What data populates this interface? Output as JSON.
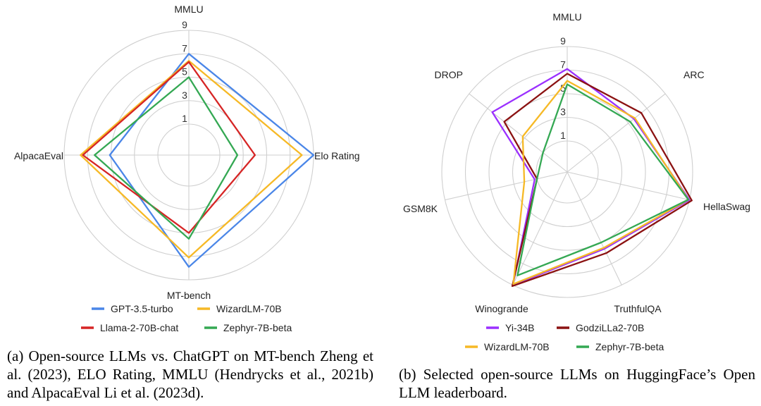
{
  "chart_data": [
    {
      "type": "radar",
      "axes": [
        "MMLU",
        "Elo Rating",
        "MT-bench",
        "AlpacaEval"
      ],
      "rlim": [
        1,
        9
      ],
      "ticks": [
        1,
        3,
        5,
        7,
        9
      ],
      "legend_position": "bottom",
      "series": [
        {
          "name": "GPT-3.5-turbo",
          "color": "#4a86e8",
          "values": [
            7.0,
            9.0,
            7.9,
            5.1
          ]
        },
        {
          "name": "WizardLM-70B",
          "color": "#f6b926",
          "values": [
            6.4,
            8.0,
            7.1,
            7.6
          ]
        },
        {
          "name": "Llama-2-70B-chat",
          "color": "#d62525",
          "values": [
            6.3,
            4.0,
            5.0,
            7.4
          ]
        },
        {
          "name": "Zephyr-7B-beta",
          "color": "#34a853",
          "values": [
            5.0,
            2.5,
            5.5,
            6.4
          ]
        }
      ]
    },
    {
      "type": "radar",
      "axes": [
        "MMLU",
        "ARC",
        "HellaSwag",
        "TruthfulQA",
        "Winogrande",
        "GSM8K",
        "DROP"
      ],
      "rlim": [
        1,
        9
      ],
      "ticks": [
        1,
        3,
        5,
        7,
        9
      ],
      "legend_position": "bottom",
      "series": [
        {
          "name": "Yi-34B",
          "color": "#9b30ff",
          "values": [
            7.1,
            5.6,
            9.0,
            5.6,
            9.0,
            1.2,
            6.5
          ]
        },
        {
          "name": "GodziLLa2-70B",
          "color": "#8b1212",
          "values": [
            6.7,
            6.4,
            9.2,
            6.0,
            9.1,
            1.0,
            5.2
          ]
        },
        {
          "name": "WizardLM-70B",
          "color": "#f6b926",
          "values": [
            6.1,
            5.7,
            8.9,
            5.5,
            8.9,
            2.1,
            3.2
          ]
        },
        {
          "name": "Zephyr-7B-beta",
          "color": "#34a853",
          "values": [
            5.8,
            5.2,
            8.9,
            5.0,
            8.1,
            1.0,
            1.0
          ]
        }
      ]
    }
  ],
  "captions": {
    "a": "(a) Open-source LLMs vs. ChatGPT on MT-bench Zheng et al. (2023), ELO Rating, MMLU (Hendrycks et al., 2021b) and AlpacaEval Li et al. (2023d).",
    "b": "(b) Selected open-source LLMs on HuggingFace’s Open LLM leaderboard."
  }
}
